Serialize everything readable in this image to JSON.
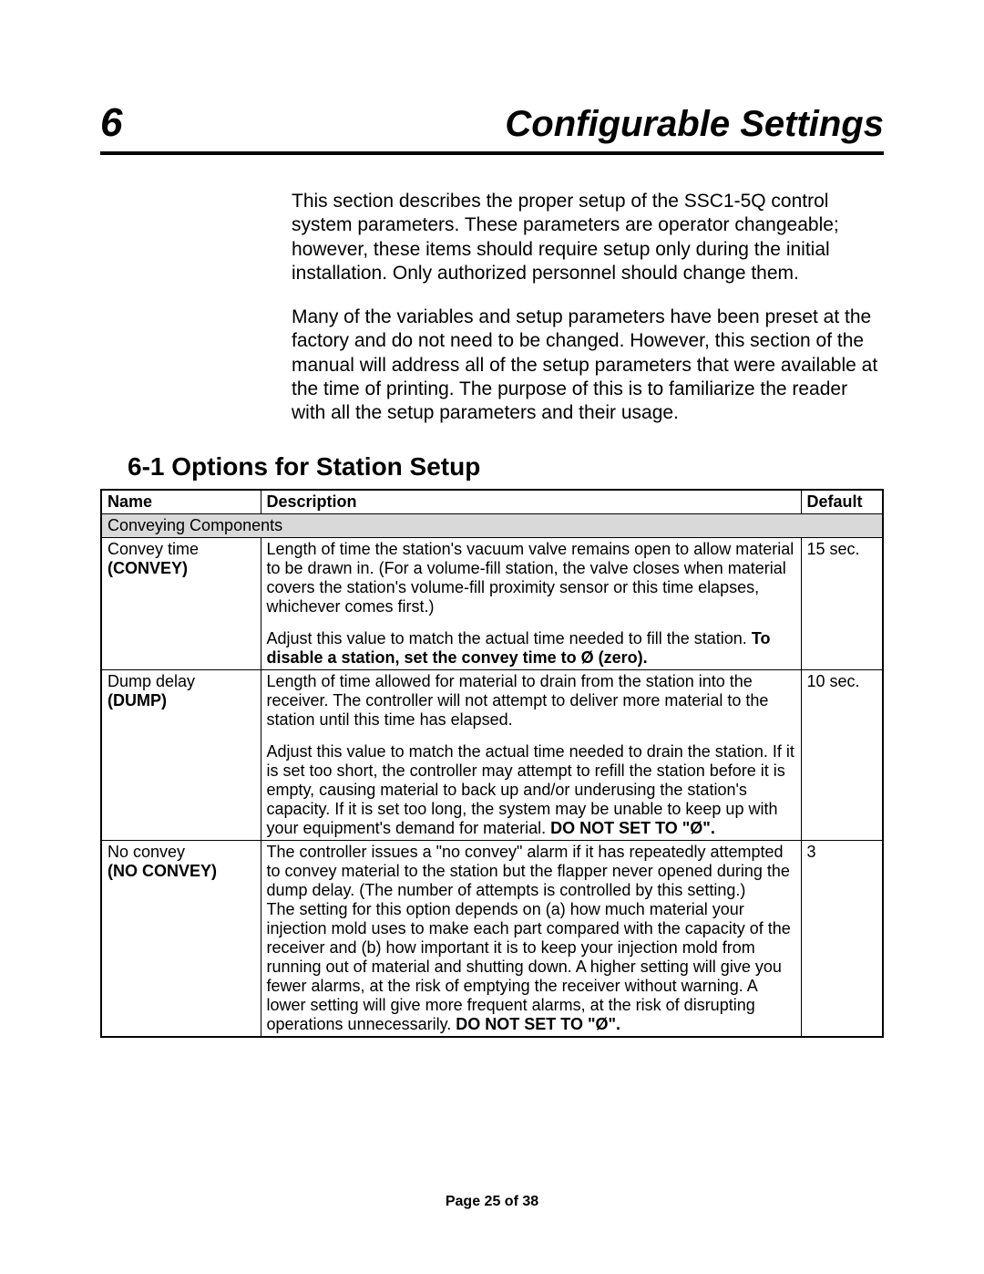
{
  "chapter": {
    "number": "6",
    "title": "Configurable Settings"
  },
  "intro": {
    "p1": "This section describes the proper setup of the SSC1-5Q control system parameters. These parameters are operator changeable; however, these items should require setup only during the initial installation. Only authorized personnel should change them.",
    "p2": "Many of the variables and setup parameters have been preset at the factory and do not need to be changed. However, this section of the manual will address all of the setup parameters that were available at the time of printing. The purpose of this is to familiarize the reader with all the setup parameters and their usage."
  },
  "section": {
    "heading": "6-1  Options for Station Setup"
  },
  "table": {
    "headers": {
      "name": "Name",
      "description": "Description",
      "default": "Default"
    },
    "group_label": "Conveying Components",
    "rows": {
      "r1": {
        "name_line1": "Convey time",
        "name_code": "(CONVEY)",
        "default": "15 sec.",
        "desc_p1": "Length of time the station's vacuum valve remains open to allow material to be drawn in. (For a volume-fill station, the valve closes when material covers the station's volume-fill proximity sensor or this time elapses, whichever comes first.)",
        "desc_p2a": "Adjust this value to match the actual time needed to fill the station. ",
        "desc_p2b": "To disable a station, set the convey time to Ø (zero)."
      },
      "r2": {
        "name_line1": "Dump delay",
        "name_code": "(DUMP)",
        "default": "10 sec.",
        "desc_p1": "Length of time allowed for material to drain from the station into the receiver. The controller will not attempt to deliver more material to the station until this time has elapsed.",
        "desc_p2a": "Adjust this value to match the actual time needed to drain the station. If it is set too short, the controller may attempt to refill the station before it is empty, causing material to back up and/or underusing the station's capacity. If it is set too long, the system may be unable to keep up with your equipment's demand for material.  ",
        "desc_p2b": "DO NOT SET TO \"Ø\"."
      },
      "r3": {
        "name_line1": "No convey",
        "name_code": "(NO CONVEY)",
        "default": "3",
        "desc_p1": "The controller issues a \"no convey\" alarm if it has repeatedly attempted to convey material to the station but the flapper never opened during the dump delay. (The number of attempts is controlled by this setting.)",
        "desc_p2a": "The setting for this option depends on (a) how much material your injection mold uses to make each part compared with the capacity of the receiver and (b) how important it is to keep your injection mold from running out of material and shutting down. A higher setting will give you fewer alarms, at the risk of emptying the receiver without warning. A lower setting will give more frequent alarms, at the risk of disrupting operations unnecessarily.  ",
        "desc_p2b": "DO NOT SET TO \"Ø\"."
      }
    }
  },
  "footer": "Page 25 of 38"
}
